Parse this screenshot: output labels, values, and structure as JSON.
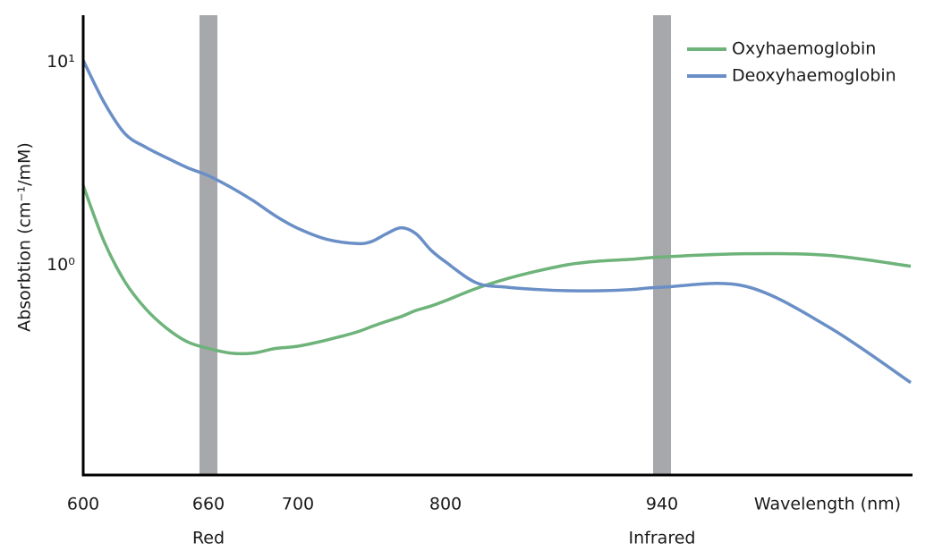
{
  "chart_data": {
    "type": "line",
    "y_label": "Absorbtion (cm⁻¹/mM)",
    "x_label": "Wavelength (nm)",
    "log_y": true,
    "legend": "top-right",
    "x": [
      600,
      610,
      620,
      630,
      640,
      650,
      660,
      670,
      680,
      690,
      700,
      720,
      740,
      750,
      760,
      770,
      780,
      790,
      800,
      820,
      840,
      860,
      880,
      900,
      920,
      940,
      960,
      980,
      1000
    ],
    "series": [
      {
        "name": "Oxyhaemoglobin",
        "color": "#6db37a",
        "values": [
          2.47,
          1.31,
          0.83,
          0.61,
          0.49,
          0.42,
          0.39,
          0.37,
          0.37,
          0.39,
          0.4,
          0.43,
          0.47,
          0.5,
          0.53,
          0.56,
          0.6,
          0.63,
          0.67,
          0.77,
          0.86,
          0.94,
          1.01,
          1.05,
          1.07,
          1.1,
          1.14,
          1.12,
          0.99
        ]
      },
      {
        "name": "Deoxyhaemoglobin",
        "color": "#6a8fc7",
        "values": [
          10.2,
          6.34,
          4.44,
          3.81,
          3.38,
          3.02,
          2.76,
          2.42,
          2.08,
          1.75,
          1.52,
          1.34,
          1.28,
          1.31,
          1.43,
          1.53,
          1.43,
          1.19,
          1.04,
          0.82,
          0.78,
          0.76,
          0.75,
          0.75,
          0.76,
          0.78,
          0.79,
          0.5,
          0.265
        ]
      }
    ],
    "xlim": [
      600,
      1000
    ],
    "xticks": [
      600,
      660,
      700,
      800,
      940
    ],
    "ylim": [
      0.093,
      17
    ],
    "yticks": [
      {
        "value": 1,
        "label": "10⁰"
      },
      {
        "value": 10,
        "label": "10¹"
      }
    ],
    "bands": [
      {
        "x": 660,
        "label": "Red",
        "color": "#a7a8ab"
      },
      {
        "x": 940,
        "label": "Infrared",
        "color": "#a7a8ab"
      }
    ]
  }
}
